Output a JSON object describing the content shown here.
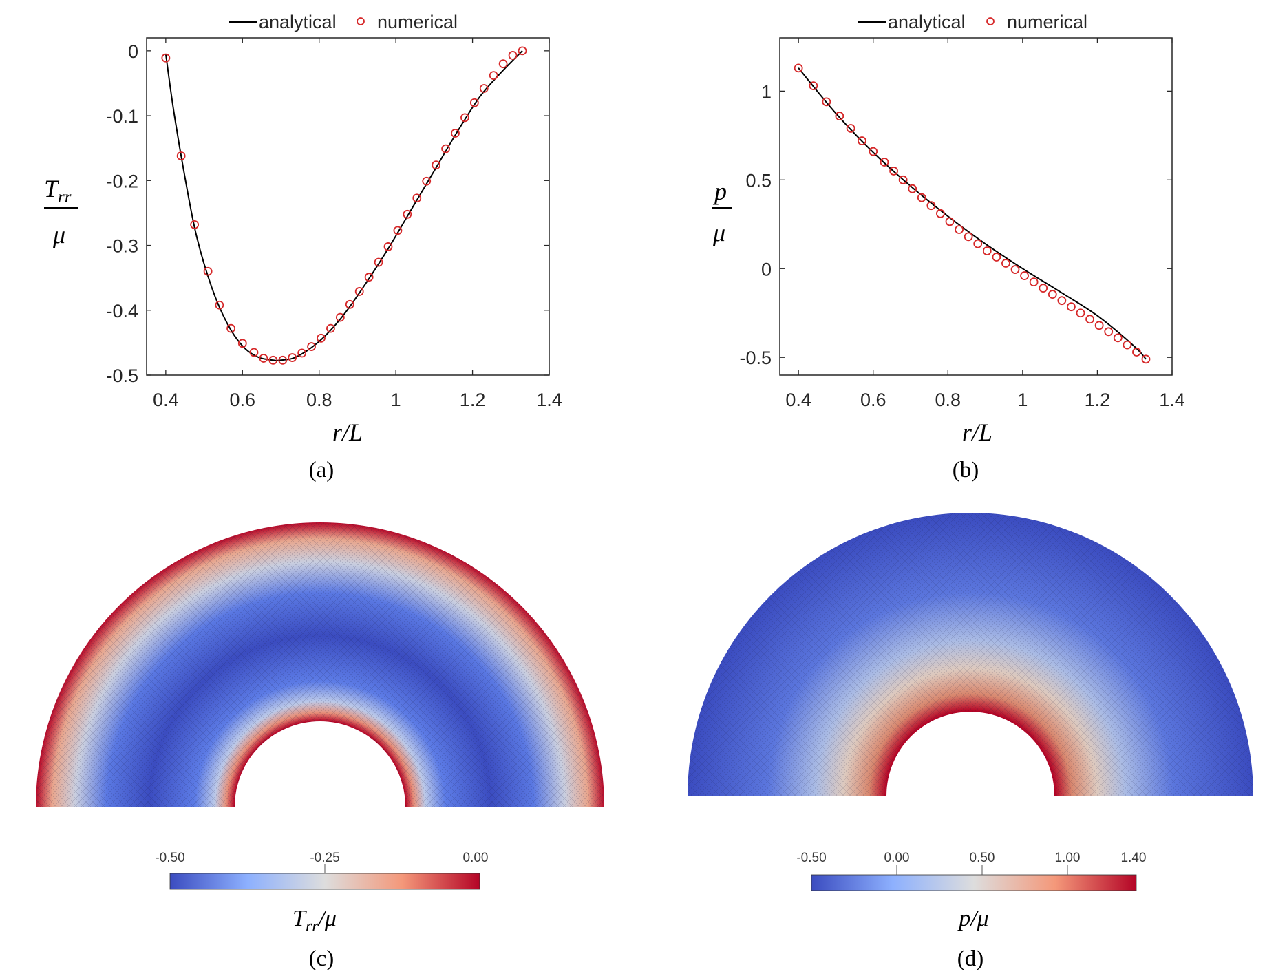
{
  "chart_data": [
    {
      "id": "a",
      "type": "line",
      "caption": "(a)",
      "xlabel": "r/L",
      "ylabel_num": "T",
      "ylabel_sub": "rr",
      "ylabel_den": "μ",
      "xlim": [
        0.35,
        1.4
      ],
      "ylim": [
        -0.5,
        0.02
      ],
      "xticks": [
        0.4,
        0.6,
        0.8,
        1.0,
        1.2,
        1.4
      ],
      "xtick_labels": [
        "0.4",
        "0.6",
        "0.8",
        "1",
        "1.2",
        "1.4"
      ],
      "yticks": [
        0,
        -0.1,
        -0.2,
        -0.3,
        -0.4,
        -0.5
      ],
      "ytick_labels": [
        "0",
        "-0.1",
        "-0.2",
        "-0.3",
        "-0.4",
        "-0.5"
      ],
      "legend": [
        "analytical",
        "numerical"
      ],
      "series": [
        {
          "name": "analytical",
          "style": "line",
          "color": "#000000",
          "x": [
            0.4,
            0.42,
            0.45,
            0.48,
            0.52,
            0.56,
            0.6,
            0.64,
            0.68,
            0.7,
            0.74,
            0.8,
            0.86,
            0.92,
            0.98,
            1.04,
            1.1,
            1.16,
            1.22,
            1.28,
            1.33
          ],
          "y": [
            -0.005,
            -0.09,
            -0.195,
            -0.285,
            -0.365,
            -0.42,
            -0.455,
            -0.472,
            -0.477,
            -0.477,
            -0.472,
            -0.448,
            -0.41,
            -0.36,
            -0.305,
            -0.245,
            -0.185,
            -0.125,
            -0.07,
            -0.03,
            0.0
          ]
        },
        {
          "name": "numerical",
          "style": "marker",
          "color": "#d62728",
          "x": [
            0.4,
            0.44,
            0.475,
            0.51,
            0.54,
            0.57,
            0.6,
            0.63,
            0.655,
            0.68,
            0.705,
            0.73,
            0.755,
            0.78,
            0.805,
            0.83,
            0.855,
            0.88,
            0.905,
            0.93,
            0.955,
            0.98,
            1.005,
            1.03,
            1.055,
            1.08,
            1.105,
            1.13,
            1.155,
            1.18,
            1.205,
            1.23,
            1.255,
            1.28,
            1.305,
            1.33
          ],
          "y": [
            -0.011,
            -0.162,
            -0.268,
            -0.34,
            -0.392,
            -0.428,
            -0.451,
            -0.465,
            -0.474,
            -0.477,
            -0.477,
            -0.473,
            -0.466,
            -0.456,
            -0.443,
            -0.428,
            -0.411,
            -0.391,
            -0.371,
            -0.349,
            -0.326,
            -0.302,
            -0.277,
            -0.252,
            -0.227,
            -0.201,
            -0.176,
            -0.151,
            -0.127,
            -0.103,
            -0.08,
            -0.058,
            -0.038,
            -0.02,
            -0.007,
            0.0
          ]
        }
      ]
    },
    {
      "id": "b",
      "type": "line",
      "caption": "(b)",
      "xlabel": "r/L",
      "ylabel_num": "p",
      "ylabel_den": "μ",
      "xlim": [
        0.35,
        1.4
      ],
      "ylim": [
        -0.6,
        1.3
      ],
      "xticks": [
        0.4,
        0.6,
        0.8,
        1.0,
        1.2,
        1.4
      ],
      "xtick_labels": [
        "0.4",
        "0.6",
        "0.8",
        "1",
        "1.2",
        "1.4"
      ],
      "yticks": [
        1,
        0.5,
        0,
        -0.5
      ],
      "ytick_labels": [
        "1",
        "0.5",
        "0",
        "-0.5"
      ],
      "legend": [
        "analytical",
        "numerical"
      ],
      "series": [
        {
          "name": "analytical",
          "style": "line",
          "color": "#000000",
          "x": [
            0.4,
            0.5,
            0.6,
            0.7,
            0.8,
            0.9,
            1.0,
            1.1,
            1.2,
            1.3,
            1.33
          ],
          "y": [
            1.13,
            0.875,
            0.655,
            0.465,
            0.295,
            0.14,
            0.0,
            -0.13,
            -0.265,
            -0.44,
            -0.51
          ]
        },
        {
          "name": "numerical",
          "style": "marker",
          "color": "#d62728",
          "x": [
            0.4,
            0.44,
            0.475,
            0.51,
            0.54,
            0.57,
            0.6,
            0.63,
            0.655,
            0.68,
            0.705,
            0.73,
            0.755,
            0.78,
            0.805,
            0.83,
            0.855,
            0.88,
            0.905,
            0.93,
            0.955,
            0.98,
            1.005,
            1.03,
            1.055,
            1.08,
            1.105,
            1.13,
            1.155,
            1.18,
            1.205,
            1.23,
            1.255,
            1.28,
            1.305,
            1.33
          ],
          "y": [
            1.13,
            1.03,
            0.94,
            0.86,
            0.79,
            0.72,
            0.66,
            0.6,
            0.55,
            0.5,
            0.45,
            0.4,
            0.355,
            0.31,
            0.265,
            0.22,
            0.18,
            0.14,
            0.1,
            0.065,
            0.03,
            -0.005,
            -0.04,
            -0.075,
            -0.11,
            -0.145,
            -0.18,
            -0.215,
            -0.25,
            -0.285,
            -0.32,
            -0.355,
            -0.39,
            -0.43,
            -0.47,
            -0.51
          ]
        }
      ]
    },
    {
      "id": "c",
      "type": "heatmap",
      "caption": "(c)",
      "field_label_base": "T",
      "field_label_sub": "rr",
      "field_label_den": "/μ",
      "colorbar_ticks": [
        "-0.50",
        "-0.25",
        "0.00"
      ],
      "colorbar_range": [
        -0.5,
        0.0
      ],
      "colors": [
        "#3b4cc0",
        "#dddddd",
        "#b40426"
      ]
    },
    {
      "id": "d",
      "type": "heatmap",
      "caption": "(d)",
      "field_label": "p/μ",
      "colorbar_ticks": [
        "-0.50",
        "0.00",
        "0.50",
        "1.00",
        "1.40"
      ],
      "colorbar_range": [
        -0.5,
        1.4
      ],
      "colors": [
        "#3b4cc0",
        "#dddddd",
        "#b40426"
      ]
    }
  ]
}
